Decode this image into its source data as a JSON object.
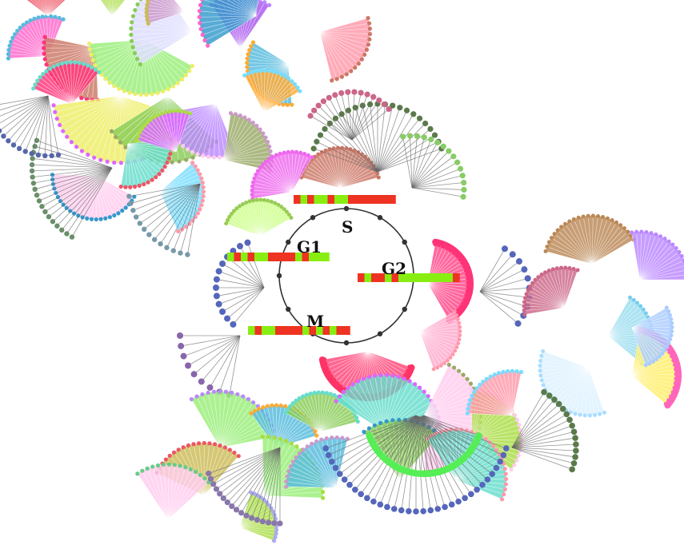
{
  "diagram": {
    "type": "cell-cycle radial tree",
    "central_ring_color": "#333333",
    "heat_colors": [
      "#ee3322",
      "#88ee11"
    ],
    "phases": [
      {
        "name": "S",
        "pattern": [
          0,
          1,
          0,
          1,
          1,
          0,
          1,
          1,
          0,
          0,
          0,
          0,
          0,
          0,
          0
        ]
      },
      {
        "name": "G1",
        "pattern": [
          1,
          0,
          1,
          0,
          1,
          1,
          0,
          0,
          0,
          0,
          1,
          0,
          1,
          1,
          1
        ]
      },
      {
        "name": "G2",
        "pattern": [
          0,
          1,
          0,
          0,
          1,
          0,
          1,
          1,
          1,
          1,
          1,
          1,
          1,
          1,
          0
        ]
      },
      {
        "name": "M",
        "pattern": [
          1,
          0,
          1,
          1,
          0,
          0,
          0,
          0,
          1,
          0,
          1,
          0,
          1,
          0,
          0
        ]
      }
    ]
  }
}
